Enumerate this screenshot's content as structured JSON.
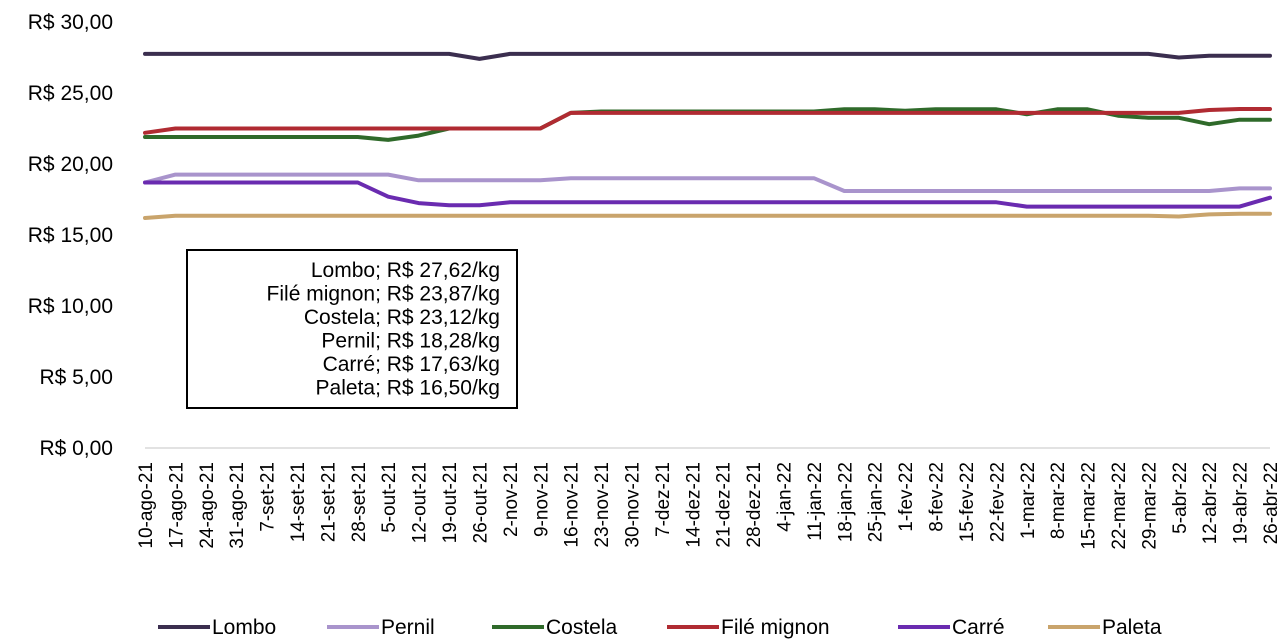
{
  "chart_data": {
    "type": "line",
    "y_format": "R$ {v}",
    "ylim": [
      0,
      30
    ],
    "yticks": [
      "R$ 0,00",
      "R$ 5,00",
      "R$ 10,00",
      "R$ 15,00",
      "R$ 20,00",
      "R$ 25,00",
      "R$ 30,00"
    ],
    "ytick_values": [
      0,
      5,
      10,
      15,
      20,
      25,
      30
    ],
    "grid": false,
    "legend_position": "bottom",
    "categories": [
      "10-ago-21",
      "17-ago-21",
      "24-ago-21",
      "31-ago-21",
      "7-set-21",
      "14-set-21",
      "21-set-21",
      "28-set-21",
      "5-out-21",
      "12-out-21",
      "19-out-21",
      "26-out-21",
      "2-nov-21",
      "9-nov-21",
      "16-nov-21",
      "23-nov-21",
      "30-nov-21",
      "7-dez-21",
      "14-dez-21",
      "21-dez-21",
      "28-dez-21",
      "4-jan-22",
      "11-jan-22",
      "18-jan-22",
      "25-jan-22",
      "1-fev-22",
      "8-fev-22",
      "15-fev-22",
      "22-fev-22",
      "1-mar-22",
      "8-mar-22",
      "15-mar-22",
      "22-mar-22",
      "29-mar-22",
      "5-abr-22",
      "12-abr-22",
      "19-abr-22",
      "26-abr-22"
    ],
    "series": [
      {
        "name": "Lombo",
        "color": "#3b2e4f",
        "values": [
          27.75,
          27.75,
          27.75,
          27.75,
          27.75,
          27.75,
          27.75,
          27.75,
          27.75,
          27.75,
          27.75,
          27.4,
          27.75,
          27.75,
          27.75,
          27.75,
          27.75,
          27.75,
          27.75,
          27.75,
          27.75,
          27.75,
          27.75,
          27.75,
          27.75,
          27.75,
          27.75,
          27.75,
          27.75,
          27.75,
          27.75,
          27.75,
          27.75,
          27.75,
          27.5,
          27.62,
          27.62,
          27.62
        ]
      },
      {
        "name": "Pernil",
        "color": "#a994cc",
        "values": [
          18.7,
          19.25,
          19.25,
          19.25,
          19.25,
          19.25,
          19.25,
          19.25,
          19.25,
          18.85,
          18.85,
          18.85,
          18.85,
          18.85,
          19.0,
          19.0,
          19.0,
          19.0,
          19.0,
          19.0,
          19.0,
          19.0,
          19.0,
          18.1,
          18.1,
          18.1,
          18.1,
          18.1,
          18.1,
          18.1,
          18.1,
          18.1,
          18.1,
          18.1,
          18.1,
          18.1,
          18.28,
          18.28
        ]
      },
      {
        "name": "Costela",
        "color": "#2f6a2a",
        "values": [
          21.9,
          21.9,
          21.9,
          21.9,
          21.9,
          21.9,
          21.9,
          21.9,
          21.7,
          22.0,
          22.5,
          22.5,
          22.5,
          22.5,
          23.6,
          23.7,
          23.7,
          23.7,
          23.7,
          23.7,
          23.7,
          23.7,
          23.7,
          23.85,
          23.85,
          23.75,
          23.85,
          23.85,
          23.85,
          23.5,
          23.85,
          23.85,
          23.4,
          23.25,
          23.25,
          22.8,
          23.12,
          23.12
        ]
      },
      {
        "name": "Filé mignon",
        "color": "#b02b32",
        "values": [
          22.2,
          22.5,
          22.5,
          22.5,
          22.5,
          22.5,
          22.5,
          22.5,
          22.5,
          22.5,
          22.5,
          22.5,
          22.5,
          22.5,
          23.6,
          23.6,
          23.6,
          23.6,
          23.6,
          23.6,
          23.6,
          23.6,
          23.6,
          23.6,
          23.6,
          23.6,
          23.6,
          23.6,
          23.6,
          23.6,
          23.6,
          23.6,
          23.6,
          23.6,
          23.6,
          23.8,
          23.87,
          23.87
        ]
      },
      {
        "name": "Carré",
        "color": "#6a2bb0",
        "values": [
          18.7,
          18.7,
          18.7,
          18.7,
          18.7,
          18.7,
          18.7,
          18.7,
          17.7,
          17.25,
          17.1,
          17.1,
          17.3,
          17.3,
          17.3,
          17.3,
          17.3,
          17.3,
          17.3,
          17.3,
          17.3,
          17.3,
          17.3,
          17.3,
          17.3,
          17.3,
          17.3,
          17.3,
          17.3,
          17.0,
          17.0,
          17.0,
          17.0,
          17.0,
          17.0,
          17.0,
          17.0,
          17.63
        ]
      },
      {
        "name": "Paleta",
        "color": "#c9a46c",
        "values": [
          16.2,
          16.35,
          16.35,
          16.35,
          16.35,
          16.35,
          16.35,
          16.35,
          16.35,
          16.35,
          16.35,
          16.35,
          16.35,
          16.35,
          16.35,
          16.35,
          16.35,
          16.35,
          16.35,
          16.35,
          16.35,
          16.35,
          16.35,
          16.35,
          16.35,
          16.35,
          16.35,
          16.35,
          16.35,
          16.35,
          16.35,
          16.35,
          16.35,
          16.35,
          16.3,
          16.45,
          16.5,
          16.5
        ]
      }
    ],
    "annotation_lines": [
      "Lombo; R$ 27,62/kg",
      "Filé mignon; R$ 23,87/kg",
      "Costela; R$ 23,12/kg",
      "Pernil; R$ 18,28/kg",
      "Carré; R$ 17,63/kg",
      "Paleta; R$ 16,50/kg"
    ]
  }
}
